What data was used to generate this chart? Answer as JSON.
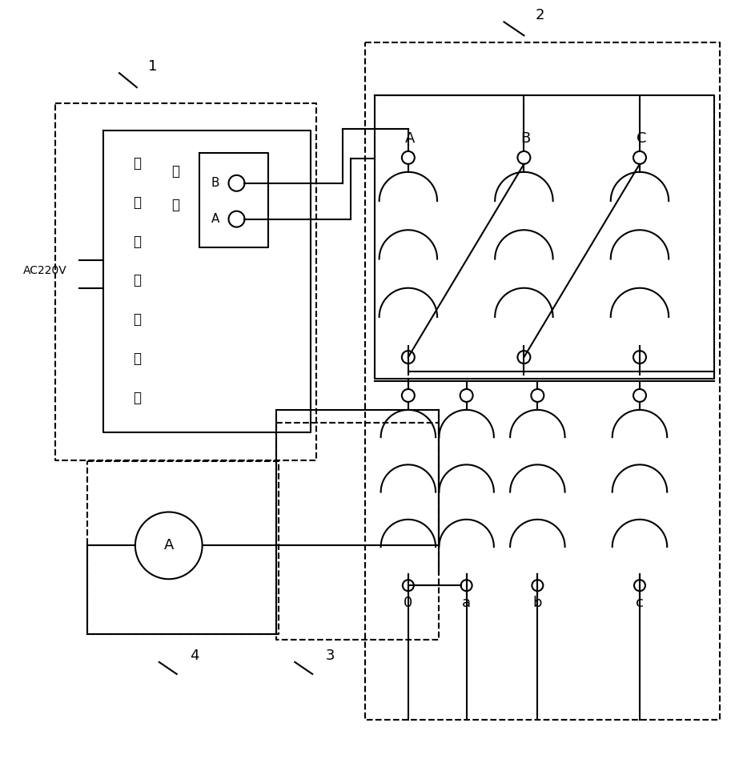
{
  "bg": "#ffffff",
  "lc": "#000000",
  "lw": 1.5,
  "fig_w": 9.18,
  "fig_h": 9.63,
  "device_chars": [
    "单",
    "相",
    "综",
    "保",
    "测",
    "试",
    "仪"
  ],
  "elec_chars": [
    "电",
    "流"
  ],
  "label1": "1",
  "label2": "2",
  "label3": "3",
  "label4": "4",
  "labelA": "A",
  "labelB": "B",
  "labelC": "C",
  "label_a": "a",
  "label_b": "b",
  "label_c": "c",
  "label_0": "0",
  "labelAC": "AC220V",
  "portB": "B",
  "portA": "A",
  "ammeter": "A"
}
